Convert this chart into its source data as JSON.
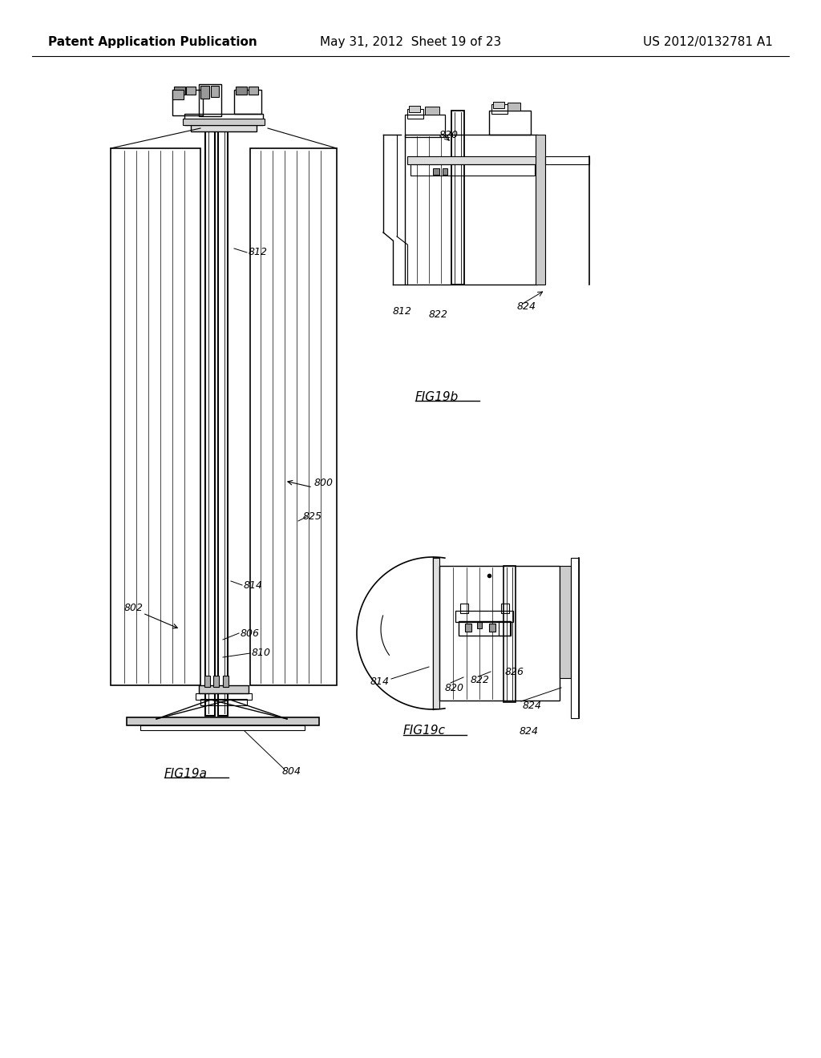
{
  "background_color": "#ffffff",
  "header_left": "Patent Application Publication",
  "header_center": "May 31, 2012  Sheet 19 of 23",
  "header_right": "US 2012/0132781 A1",
  "header_fontsize": 11,
  "line_color": "#000000",
  "text_color": "#000000",
  "fig_labels": {
    "fig19a": "FIG19a",
    "fig19b": "FIG19b",
    "fig19c": "FIG19c"
  }
}
